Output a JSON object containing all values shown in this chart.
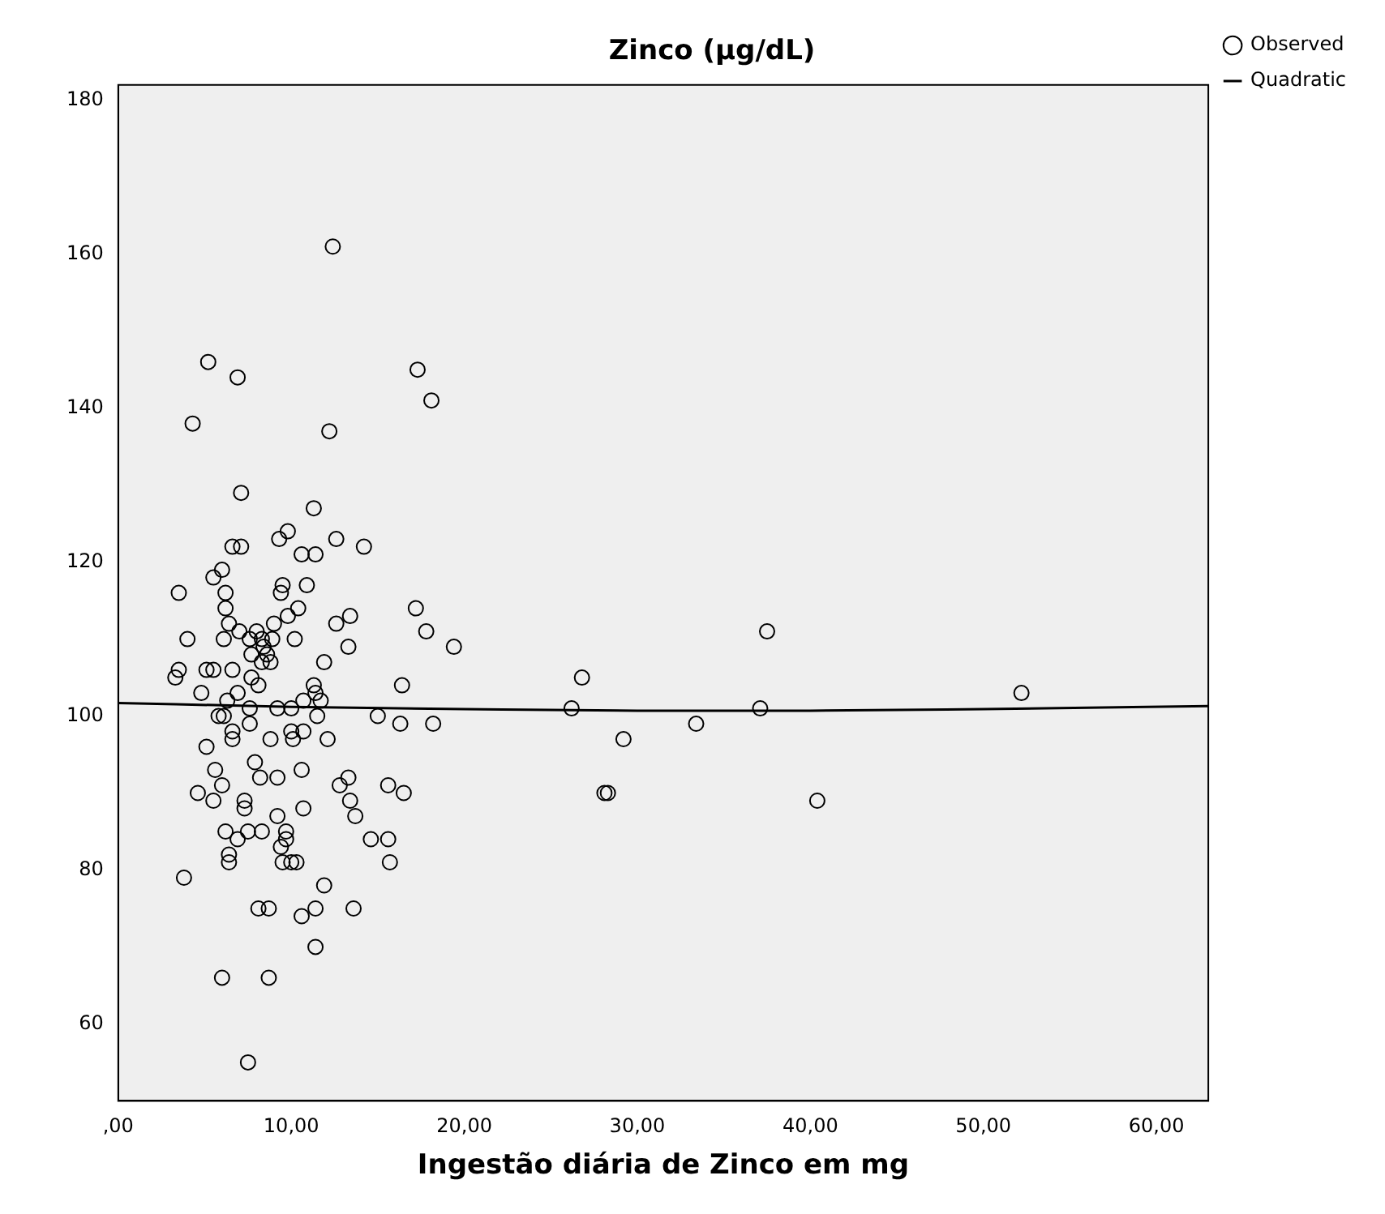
{
  "chart_data": {
    "type": "scatter",
    "title": "Zinco (µg/dL)",
    "xlabel": "Ingestão diária de Zinco em mg",
    "xlim": [
      0,
      63
    ],
    "ylim": [
      50,
      182
    ],
    "xticks": [
      {
        "value": 0,
        "label": ",00"
      },
      {
        "value": 10,
        "label": "10,00"
      },
      {
        "value": 20,
        "label": "20,00"
      },
      {
        "value": 30,
        "label": "30,00"
      },
      {
        "value": 40,
        "label": "40,00"
      },
      {
        "value": 50,
        "label": "50,00"
      },
      {
        "value": 60,
        "label": "60,00"
      }
    ],
    "yticks": [
      60,
      80,
      100,
      120,
      140,
      160,
      180
    ],
    "grid": false,
    "legend": "top right",
    "marker": "circle",
    "series": [
      {
        "name": "Observed",
        "color": "#000000",
        "x": [
          12.4,
          5.2,
          6.9,
          17.3,
          18.1,
          4.3,
          12.2,
          7.1,
          11.3,
          9.8,
          12.6,
          9.3,
          14.2,
          6.6,
          7.1,
          10.6,
          11.4,
          3.5,
          6.0,
          5.5,
          6.2,
          6.2,
          6.4,
          7.0,
          4.0,
          6.1,
          8.0,
          7.6,
          8.3,
          8.9,
          7.7,
          8.4,
          8.3,
          8.8,
          8.6,
          10.2,
          9.0,
          9.8,
          10.4,
          9.5,
          9.4,
          10.9,
          11.9,
          12.6,
          13.4,
          13.3,
          17.2,
          17.8,
          19.4,
          3.5,
          3.3,
          5.1,
          5.5,
          6.6,
          7.7,
          4.8,
          6.9,
          6.3,
          8.1,
          11.3,
          11.4,
          11.7,
          10.7,
          16.4,
          5.8,
          6.1,
          7.6,
          7.6,
          9.2,
          10.0,
          11.5,
          15.0,
          16.3,
          18.2,
          6.6,
          6.6,
          8.8,
          10.0,
          10.1,
          10.7,
          12.1,
          5.1,
          5.6,
          7.9,
          8.2,
          9.2,
          10.6,
          6.0,
          4.6,
          5.5,
          7.3,
          7.3,
          9.2,
          10.7,
          12.8,
          13.3,
          13.4,
          13.7,
          15.6,
          16.5,
          6.2,
          6.9,
          7.5,
          8.3,
          9.7,
          9.7,
          9.4,
          6.4,
          6.4,
          9.5,
          10.0,
          10.3,
          14.6,
          15.6,
          15.7,
          3.8,
          11.9,
          8.1,
          8.7,
          10.6,
          11.4,
          13.6,
          11.4,
          6.0,
          8.7,
          7.5,
          26.8,
          26.2,
          29.2,
          28.1,
          28.3,
          33.4,
          37.1,
          37.5,
          40.4,
          52.2
        ],
        "values": [
          161,
          146,
          144,
          145,
          141,
          138,
          137,
          129,
          127,
          124,
          123,
          123,
          122,
          122,
          122,
          121,
          121,
          116,
          119,
          118,
          116,
          114,
          112,
          111,
          110,
          110,
          111,
          110,
          110,
          110,
          108,
          109,
          107,
          107,
          108,
          110,
          112,
          113,
          114,
          117,
          116,
          117,
          107,
          112,
          113,
          109,
          114,
          111,
          109,
          106,
          105,
          106,
          106,
          106,
          105,
          103,
          103,
          102,
          104,
          104,
          103,
          102,
          102,
          104,
          100,
          100,
          101,
          99,
          101,
          101,
          100,
          100,
          99,
          99,
          98,
          97,
          97,
          98,
          97,
          98,
          97,
          96,
          93,
          94,
          92,
          92,
          93,
          91,
          90,
          89,
          89,
          88,
          87,
          88,
          91,
          92,
          89,
          87,
          91,
          90,
          85,
          84,
          85,
          85,
          85,
          84,
          83,
          82,
          81,
          81,
          81,
          81,
          84,
          84,
          81,
          79,
          78,
          75,
          75,
          74,
          75,
          75,
          70,
          66,
          66,
          55,
          105,
          101,
          97,
          90,
          90,
          99,
          101,
          111,
          89,
          103
        ]
      },
      {
        "name": "Quadratic",
        "type": "line",
        "color": "#000000",
        "marker": "none",
        "x": [
          0,
          10,
          20,
          30,
          40,
          50,
          63
        ],
        "values": [
          101.7,
          101.2,
          100.9,
          100.7,
          100.7,
          100.9,
          101.3
        ]
      }
    ]
  }
}
